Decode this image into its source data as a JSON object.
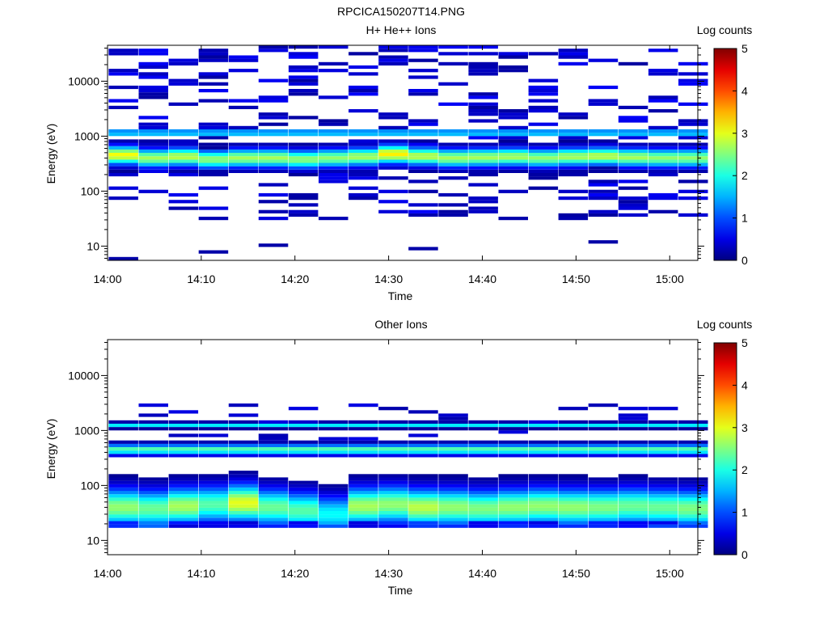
{
  "figure_title": "RPCICA150207T14.PNG",
  "chart_data": [
    {
      "type": "heatmap",
      "title": "H+ He++ Ions",
      "xlabel": "Time",
      "ylabel": "Energy (eV)",
      "x_range": [
        "14:00",
        "15:03"
      ],
      "x_ticks": [
        "14:00",
        "14:10",
        "14:20",
        "14:30",
        "14:40",
        "14:50",
        "15:00"
      ],
      "y_scale": "log",
      "y_range": [
        5.5,
        45000
      ],
      "y_ticks": [
        "10",
        "100",
        "1000",
        "10000"
      ],
      "colorbar": {
        "label": "Log counts",
        "min": 0,
        "max": 5,
        "ticks": [
          "0",
          "1",
          "2",
          "3",
          "4",
          "5"
        ]
      },
      "time_bins": [
        "14:01.7",
        "14:04.9",
        "14:08.1",
        "14:11.3",
        "14:14.5",
        "14:17.7",
        "14:20.9",
        "14:24.1",
        "14:27.3",
        "14:30.5",
        "14:33.7",
        "14:36.9",
        "14:40.1",
        "14:43.3",
        "14:46.5",
        "14:49.7",
        "14:52.9",
        "14:56.1",
        "14:59.3",
        "15:02.5"
      ],
      "peak_energy_eV": [
        450,
        400,
        420,
        380,
        400,
        400,
        380,
        400,
        420,
        470,
        430,
        400,
        410,
        420,
        400,
        420,
        430,
        410,
        400,
        400
      ],
      "peak_log_counts": [
        3.1,
        2.7,
        2.8,
        2.6,
        2.7,
        2.7,
        2.6,
        2.6,
        2.7,
        3.2,
        2.8,
        2.7,
        2.7,
        2.7,
        2.6,
        2.7,
        2.8,
        2.7,
        2.6,
        2.6
      ],
      "secondary_band_eV": 1150,
      "secondary_band_log_counts": 2.1
    },
    {
      "type": "heatmap",
      "title": "Other Ions",
      "xlabel": "Time",
      "ylabel": "Energy (eV)",
      "x_range": [
        "14:00",
        "15:03"
      ],
      "x_ticks": [
        "14:00",
        "14:10",
        "14:20",
        "14:30",
        "14:40",
        "14:50",
        "15:00"
      ],
      "y_scale": "log",
      "y_range": [
        5.5,
        45000
      ],
      "y_ticks": [
        "10",
        "100",
        "1000",
        "10000"
      ],
      "colorbar": {
        "label": "Log counts",
        "min": 0,
        "max": 5,
        "ticks": [
          "0",
          "1",
          "2",
          "3",
          "4",
          "5"
        ]
      },
      "time_bins": [
        "14:01.7",
        "14:04.9",
        "14:08.1",
        "14:11.3",
        "14:14.5",
        "14:17.7",
        "14:20.9",
        "14:24.1",
        "14:27.3",
        "14:30.5",
        "14:33.7",
        "14:36.9",
        "14:40.1",
        "14:43.3",
        "14:46.5",
        "14:49.7",
        "14:52.9",
        "14:56.1",
        "14:59.3",
        "15:02.5"
      ],
      "low_band_peak_eV": [
        40,
        38,
        42,
        45,
        48,
        40,
        35,
        30,
        42,
        45,
        40,
        40,
        38,
        40,
        42,
        40,
        40,
        42,
        40,
        38
      ],
      "low_band_peak_log_counts": [
        2.6,
        2.4,
        2.7,
        2.3,
        3.0,
        2.4,
        2.3,
        1.9,
        2.7,
        2.6,
        2.8,
        2.6,
        2.5,
        2.6,
        2.6,
        2.6,
        2.5,
        2.4,
        2.4,
        2.5
      ],
      "mid_band_eV": 450,
      "mid_band_log_counts": 2.3,
      "upper_band_eV": 1250,
      "upper_band_log_counts": 1.8
    }
  ]
}
